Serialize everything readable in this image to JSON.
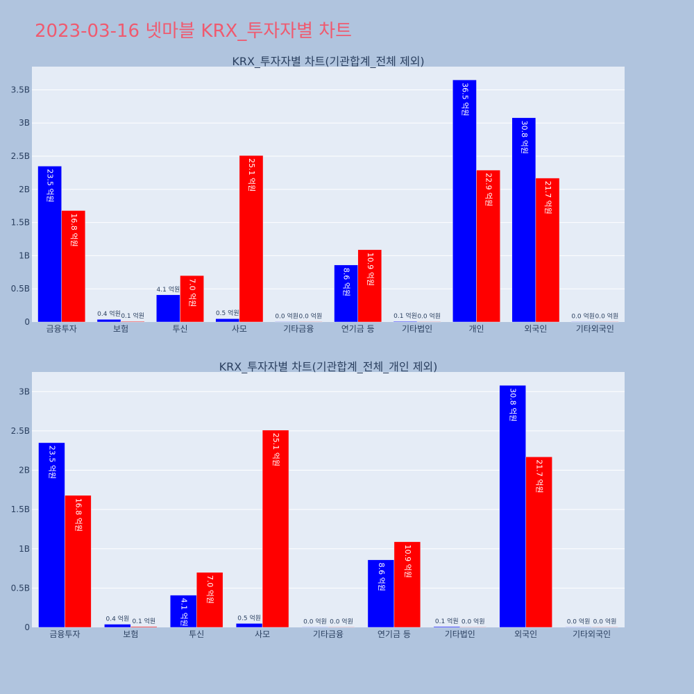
{
  "page_title": "2023-03-16 넷마블 KRX_투자자별 차트",
  "colors": {
    "buy": "#0000ff",
    "sell": "#ff0000",
    "plot_bg": "#e5ecf6",
    "page_bg": "#b0c4de",
    "title": "#ef5a6f"
  },
  "chart_data": [
    {
      "type": "bar",
      "title": "KRX_투자자별 차트(기관합계_전체 제외)",
      "categories": [
        "금융투자",
        "보험",
        "투신",
        "사모",
        "기타금융",
        "연기금 등",
        "기타법인",
        "개인",
        "외국인",
        "기타외국인"
      ],
      "series": [
        {
          "values": [
            2.35,
            0.04,
            0.41,
            0.05,
            0.0,
            0.86,
            0.01,
            3.65,
            3.08,
            0.0
          ],
          "labels": [
            "23.5 억원",
            "0.4 억원",
            "4.1 억원",
            "0.5 억원",
            "0.0 억원",
            "8.6 억원",
            "0.1 억원",
            "36.5 억원",
            "30.8 억원",
            "0.0 억원"
          ]
        },
        {
          "values": [
            1.68,
            0.01,
            0.7,
            2.51,
            0.0,
            1.09,
            0.0,
            2.29,
            2.17,
            0.0
          ],
          "labels": [
            "16.8 억원",
            "0.1 억원",
            "7.0 억원",
            "25.1 억원",
            "0.0 억원",
            "10.9 억원",
            "0.0 억원",
            "22.9 억원",
            "21.7 억원",
            "0.0 억원"
          ]
        }
      ],
      "ylim": [
        0,
        3.85
      ],
      "yticks": [
        0,
        0.5,
        1,
        1.5,
        2,
        2.5,
        3,
        3.5
      ],
      "ytick_labels": [
        "0",
        "0.5B",
        "1B",
        "1.5B",
        "2B",
        "2.5B",
        "3B",
        "3.5B"
      ],
      "grid": true
    },
    {
      "type": "bar",
      "title": "KRX_투자자별 차트(기관합계_전체_개인 제외)",
      "categories": [
        "금융투자",
        "보험",
        "투신",
        "사모",
        "기타금융",
        "연기금 등",
        "기타법인",
        "외국인",
        "기타외국인"
      ],
      "series": [
        {
          "values": [
            2.35,
            0.04,
            0.41,
            0.05,
            0.0,
            0.86,
            0.01,
            3.08,
            0.0
          ],
          "labels": [
            "23.5 억원",
            "0.4 억원",
            "4.1 억원",
            "0.5 억원",
            "0.0 억원",
            "8.6 억원",
            "0.1 억원",
            "30.8 억원",
            "0.0 억원"
          ]
        },
        {
          "values": [
            1.68,
            0.01,
            0.7,
            2.51,
            0.0,
            1.09,
            0.0,
            2.17,
            0.0
          ],
          "labels": [
            "16.8 억원",
            "0.1 억원",
            "7.0 억원",
            "25.1 억원",
            "0.0 억원",
            "10.9 억원",
            "0.0 억원",
            "21.7 억원",
            "0.0 억원"
          ]
        }
      ],
      "ylim": [
        0,
        3.25
      ],
      "yticks": [
        0,
        0.5,
        1,
        1.5,
        2,
        2.5,
        3
      ],
      "ytick_labels": [
        "0",
        "0.5B",
        "1B",
        "1.5B",
        "2B",
        "2.5B",
        "3B"
      ],
      "grid": true
    }
  ]
}
